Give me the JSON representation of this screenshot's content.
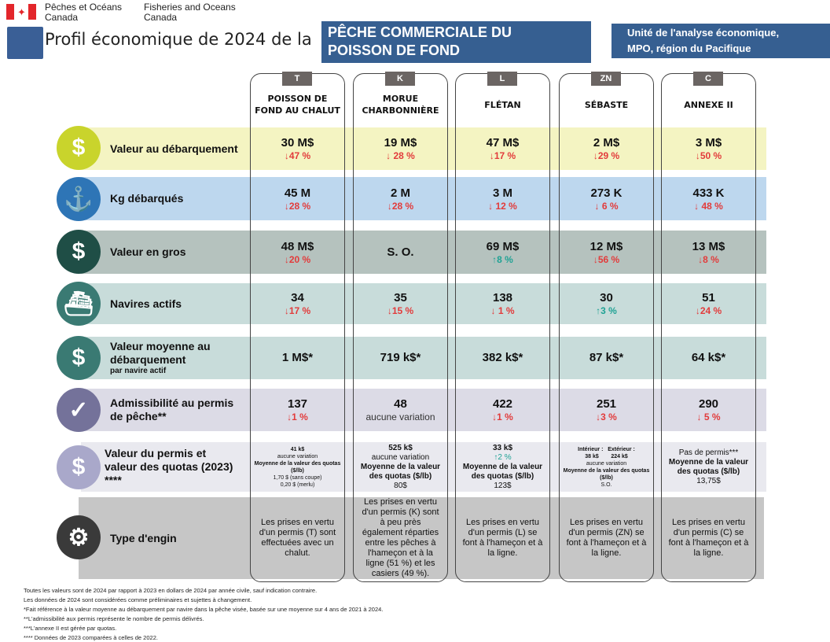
{
  "header": {
    "dept_fr": "Pêches et Océans",
    "dept_fr2": "Canada",
    "dept_en": "Fisheries and Oceans",
    "dept_en2": "Canada",
    "title": "Profil économique de 2024 de la",
    "banner_line1": "PÊCHE COMMERCIALE DU",
    "banner_line2": "POISSON DE FOND",
    "unit_line1": "Unité de l'analyse économique,",
    "unit_line2": "MPO, région du Pacifique"
  },
  "columns": [
    {
      "code": "T",
      "name1": "POISSON DE",
      "name2": "FOND AU CHALUT"
    },
    {
      "code": "K",
      "name1": "MORUE",
      "name2": "CHARBONNIÈRE"
    },
    {
      "code": "L",
      "name1": "FLÉTAN",
      "name2": ""
    },
    {
      "code": "ZN",
      "name1": "SÉBASTE",
      "name2": ""
    },
    {
      "code": "C",
      "name1": "ANNEXE II",
      "name2": ""
    }
  ],
  "rows": [
    {
      "label": "Valeur au débarquement",
      "sub": "",
      "icon": "dollar-icon",
      "color": "#c9d42c",
      "band": "#f4f4c2",
      "cells": [
        {
          "v": "30 M$",
          "c": "↓47 %",
          "d": "down"
        },
        {
          "v": "19 M$",
          "c": "↓ 28 %",
          "d": "down"
        },
        {
          "v": "47 M$",
          "c": "↓17 %",
          "d": "down"
        },
        {
          "v": "2 M$",
          "c": "↓29 %",
          "d": "down"
        },
        {
          "v": "3 M$",
          "c": "↓50 %",
          "d": "down"
        }
      ]
    },
    {
      "label": "Kg débarqués",
      "sub": "",
      "icon": "fishhook-icon",
      "color": "#2e75b6",
      "band": "#bdd7ee",
      "cells": [
        {
          "v": "45 M",
          "c": "↓28 %",
          "d": "down"
        },
        {
          "v": "2 M",
          "c": "↓28 %",
          "d": "down"
        },
        {
          "v": "3 M",
          "c": "↓ 12 %",
          "d": "down"
        },
        {
          "v": "273 K",
          "c": "↓ 6 %",
          "d": "down"
        },
        {
          "v": "433 K",
          "c": "↓ 48 %",
          "d": "down"
        }
      ]
    },
    {
      "label": "Valeur en gros",
      "sub": "",
      "icon": "dollar-icon",
      "color": "#1f4e46",
      "band": "#b5c2be",
      "cells": [
        {
          "v": "48 M$",
          "c": "↓20 %",
          "d": "down"
        },
        {
          "v": "S. O.",
          "c": "",
          "d": ""
        },
        {
          "v": "69 M$",
          "c": "↑8 %",
          "d": "up"
        },
        {
          "v": "12 M$",
          "c": "↓56 %",
          "d": "down"
        },
        {
          "v": "13 M$",
          "c": "↓8 %",
          "d": "down"
        }
      ]
    },
    {
      "label": "Navires actifs",
      "sub": "",
      "icon": "boat-icon",
      "color": "#3a7a73",
      "band": "#c8dcda",
      "cells": [
        {
          "v": "34",
          "c": "↓17 %",
          "d": "down"
        },
        {
          "v": "35",
          "c": "↓15 %",
          "d": "down"
        },
        {
          "v": "138",
          "c": "↓ 1 %",
          "d": "down"
        },
        {
          "v": "30",
          "c": "↑3 %",
          "d": "up"
        },
        {
          "v": "51",
          "c": "↓24 %",
          "d": "down"
        }
      ]
    },
    {
      "label": "Valeur moyenne au débarquement",
      "sub": "par navire actif",
      "icon": "dollar-icon",
      "color": "#3a7a73",
      "band": "#c8dcda",
      "cells": [
        {
          "v": "1 M$*",
          "c": "",
          "d": ""
        },
        {
          "v": "719 k$*",
          "c": "",
          "d": ""
        },
        {
          "v": "382 k$*",
          "c": "",
          "d": ""
        },
        {
          "v": "87 k$*",
          "c": "",
          "d": ""
        },
        {
          "v": "64 k$*",
          "c": "",
          "d": ""
        }
      ]
    },
    {
      "label": "Admissibilité au permis de pêche**",
      "sub": "",
      "icon": "checkmark-icon",
      "color": "#74729a",
      "band": "#dcdbe6",
      "cells": [
        {
          "v": "137",
          "c": "↓1 %",
          "d": "down"
        },
        {
          "v": "48",
          "c": "aucune variation",
          "d": "nc"
        },
        {
          "v": "422",
          "c": "↓1 %",
          "d": "down"
        },
        {
          "v": "251",
          "c": "↓3 %",
          "d": "down"
        },
        {
          "v": "290",
          "c": "↓ 5 %",
          "d": "down"
        }
      ]
    }
  ],
  "permit_row": {
    "label": "Valeur du permis et valeur des quotas (2023) ****",
    "icon": "dollar-icon",
    "color": "#a9a8ca",
    "band": "#e9e9ef",
    "cells": [
      [
        "41 k$",
        "aucune variation",
        "Moyenne de la valeur des quotas ($/lb)",
        "1,70 $ (sans coupe)",
        "0,20 $ (merlu)"
      ],
      [
        "525 k$",
        "aucune variation",
        "Moyenne de la valeur des quotas ($/lb)",
        "80$"
      ],
      [
        "33 k$",
        "↑2 %",
        "Moyenne de la valeur des quotas ($/lb)",
        "123$"
      ],
      [
        "Intérieur :   Extérieur :",
        "38 k$        224 k$",
        "aucune variation",
        "Moyenne de la valeur des quotas ($/lb)",
        "S.O."
      ],
      [
        "Pas de permis***",
        "Moyenne de la valeur des quotas ($/lb)",
        "13,75$"
      ]
    ]
  },
  "gear_row": {
    "label": "Type d'engin",
    "icon": "gears-icon",
    "color": "#3a3a3a",
    "band": "#c6c6c6",
    "cells": [
      "Les prises en vertu d'un permis (T) sont effectuées avec un chalut.",
      "Les prises en vertu d'un permis (K) sont à peu près également réparties entre les pêches à l'hameçon et à la ligne (51 %) et les casiers (49 %).",
      "Les prises en vertu d'un permis (L) se font à l'hameçon et à la ligne.",
      "Les prises en vertu d'un permis (ZN) se font à l'hameçon et à la ligne.",
      "Les prises en vertu d'un permis (C) se font à l'hameçon et à la ligne."
    ]
  },
  "footnotes": [
    "Toutes les valeurs sont de 2024 par rapport à 2023 en dollars de 2024 par année civile, sauf indication contraire.",
    "Les données de 2024 sont considérées comme préliminaires et sujettes à changement.",
    "*Fait référence à la valeur moyenne au débarquement par navire dans la pêche visée, basée sur une moyenne sur 4 ans de 2021 à 2024.",
    "**L'admissibilité aux permis représente le nombre de permis délivrés.",
    "***L'annexe II est gérée par quotas.",
    "**** Données de 2023 comparées à celles de 2022."
  ]
}
